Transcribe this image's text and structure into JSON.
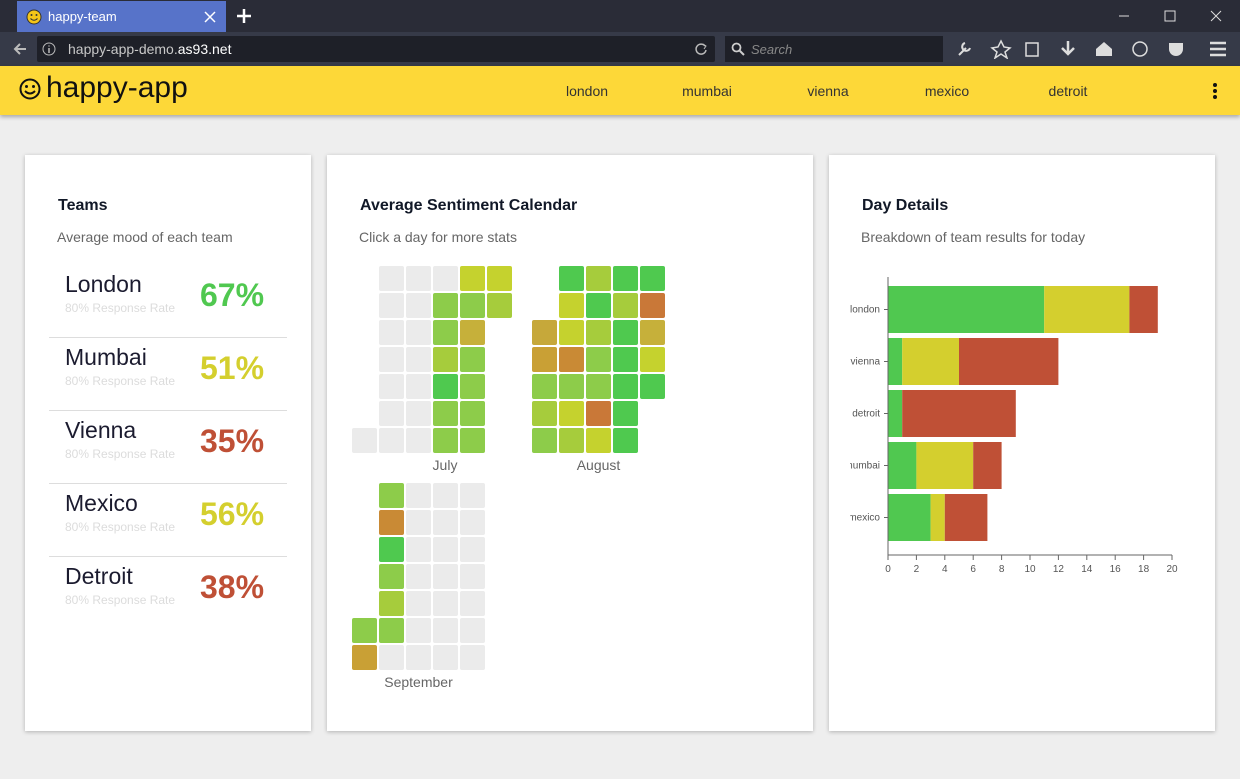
{
  "browser": {
    "tab_title": "happy-team",
    "url_prefix": "happy-app-demo.",
    "url_domain": "as93.net",
    "search_placeholder": "Search"
  },
  "header": {
    "title": "happy-app",
    "nav": [
      "london",
      "mumbai",
      "vienna",
      "mexico",
      "detroit"
    ]
  },
  "teams": {
    "title": "Teams",
    "subtitle": "Average mood of each team",
    "rows": [
      {
        "name": "London",
        "response": "80% Response Rate",
        "score": "67%",
        "color": "#50c850"
      },
      {
        "name": "Mumbai",
        "response": "80% Response Rate",
        "score": "51%",
        "color": "#d4cf2e"
      },
      {
        "name": "Vienna",
        "response": "80% Response Rate",
        "score": "35%",
        "color": "#bf5036"
      },
      {
        "name": "Mexico",
        "response": "80% Response Rate",
        "score": "56%",
        "color": "#d4cf2e"
      },
      {
        "name": "Detroit",
        "response": "80% Response Rate",
        "score": "38%",
        "color": "#bf5036"
      }
    ]
  },
  "calendar": {
    "title": "Average Sentiment Calendar",
    "subtitle": "Click a day for more stats",
    "months": [
      {
        "label": "July",
        "cells": [
          [
            null,
            "#ebebeb",
            "#ebebeb",
            "#ebebeb",
            "#c5d22e",
            "#c5d22e"
          ],
          [
            null,
            "#ebebeb",
            "#ebebeb",
            "#8dcc4a",
            "#8dcc4a",
            "#a6cc3c"
          ],
          [
            null,
            "#ebebeb",
            "#ebebeb",
            "#8dcc4a",
            "#c6b03a",
            null
          ],
          [
            null,
            "#ebebeb",
            "#ebebeb",
            "#a6cc3c",
            "#8dcc4a",
            null
          ],
          [
            null,
            "#ebebeb",
            "#ebebeb",
            "#4fc94f",
            "#8dcc4a",
            null
          ],
          [
            null,
            "#ebebeb",
            "#ebebeb",
            "#8dcc4a",
            "#8dcc4a",
            null
          ],
          [
            "#ebebeb",
            "#ebebeb",
            "#ebebeb",
            "#8dcc4a",
            "#8dcc4a",
            null
          ]
        ]
      },
      {
        "label": "August",
        "cells": [
          [
            null,
            "#4fc94f",
            "#a6cc3c",
            "#4fc94f",
            "#4fc94f"
          ],
          [
            null,
            "#c5d22e",
            "#4fc94f",
            "#a6cc3c",
            "#c97838"
          ],
          [
            "#c6a83a",
            "#c5d22e",
            "#a6cc3c",
            "#4fc94f",
            "#c6b03a"
          ],
          [
            "#c9a035",
            "#c98a35",
            "#8dcc4a",
            "#4fc94f",
            "#c5d22e"
          ],
          [
            "#8dcc4a",
            "#8dcc4a",
            "#8dcc4a",
            "#4fc94f",
            "#4fc94f"
          ],
          [
            "#a6cc3c",
            "#c5d22e",
            "#c97838",
            "#4fc94f",
            null
          ],
          [
            "#8dcc4a",
            "#a6cc3c",
            "#c5d22e",
            "#4fc94f",
            null
          ]
        ]
      },
      {
        "label": "September",
        "cells": [
          [
            null,
            "#8dcc4a",
            "#ebebeb",
            "#ebebeb",
            "#ebebeb"
          ],
          [
            null,
            "#c98a35",
            "#ebebeb",
            "#ebebeb",
            "#ebebeb"
          ],
          [
            null,
            "#4fc94f",
            "#ebebeb",
            "#ebebeb",
            "#ebebeb"
          ],
          [
            null,
            "#8dcc4a",
            "#ebebeb",
            "#ebebeb",
            "#ebebeb"
          ],
          [
            null,
            "#a6cc3c",
            "#ebebeb",
            "#ebebeb",
            "#ebebeb"
          ],
          [
            "#8dcc4a",
            "#8dcc4a",
            "#ebebeb",
            "#ebebeb",
            "#ebebeb"
          ],
          [
            "#c9a035",
            "#ebebeb",
            "#ebebeb",
            "#ebebeb",
            "#ebebeb"
          ]
        ]
      }
    ]
  },
  "chart_data": {
    "type": "bar",
    "orientation": "horizontal",
    "stacked": true,
    "title": "Day Details",
    "subtitle": "Breakdown of team results for today",
    "categories": [
      "london",
      "vienna",
      "detroit",
      "mumbai",
      "mexico"
    ],
    "series": [
      {
        "color": "#50c850",
        "values": [
          11,
          1,
          1,
          2,
          3
        ]
      },
      {
        "color": "#d4cf2e",
        "values": [
          6,
          4,
          0,
          4,
          1
        ]
      },
      {
        "color": "#bf5036",
        "values": [
          2,
          7,
          8,
          2,
          3
        ]
      }
    ],
    "xlim": [
      0,
      20
    ],
    "xticks": [
      0,
      2,
      4,
      6,
      8,
      10,
      12,
      14,
      16,
      18,
      20
    ]
  }
}
